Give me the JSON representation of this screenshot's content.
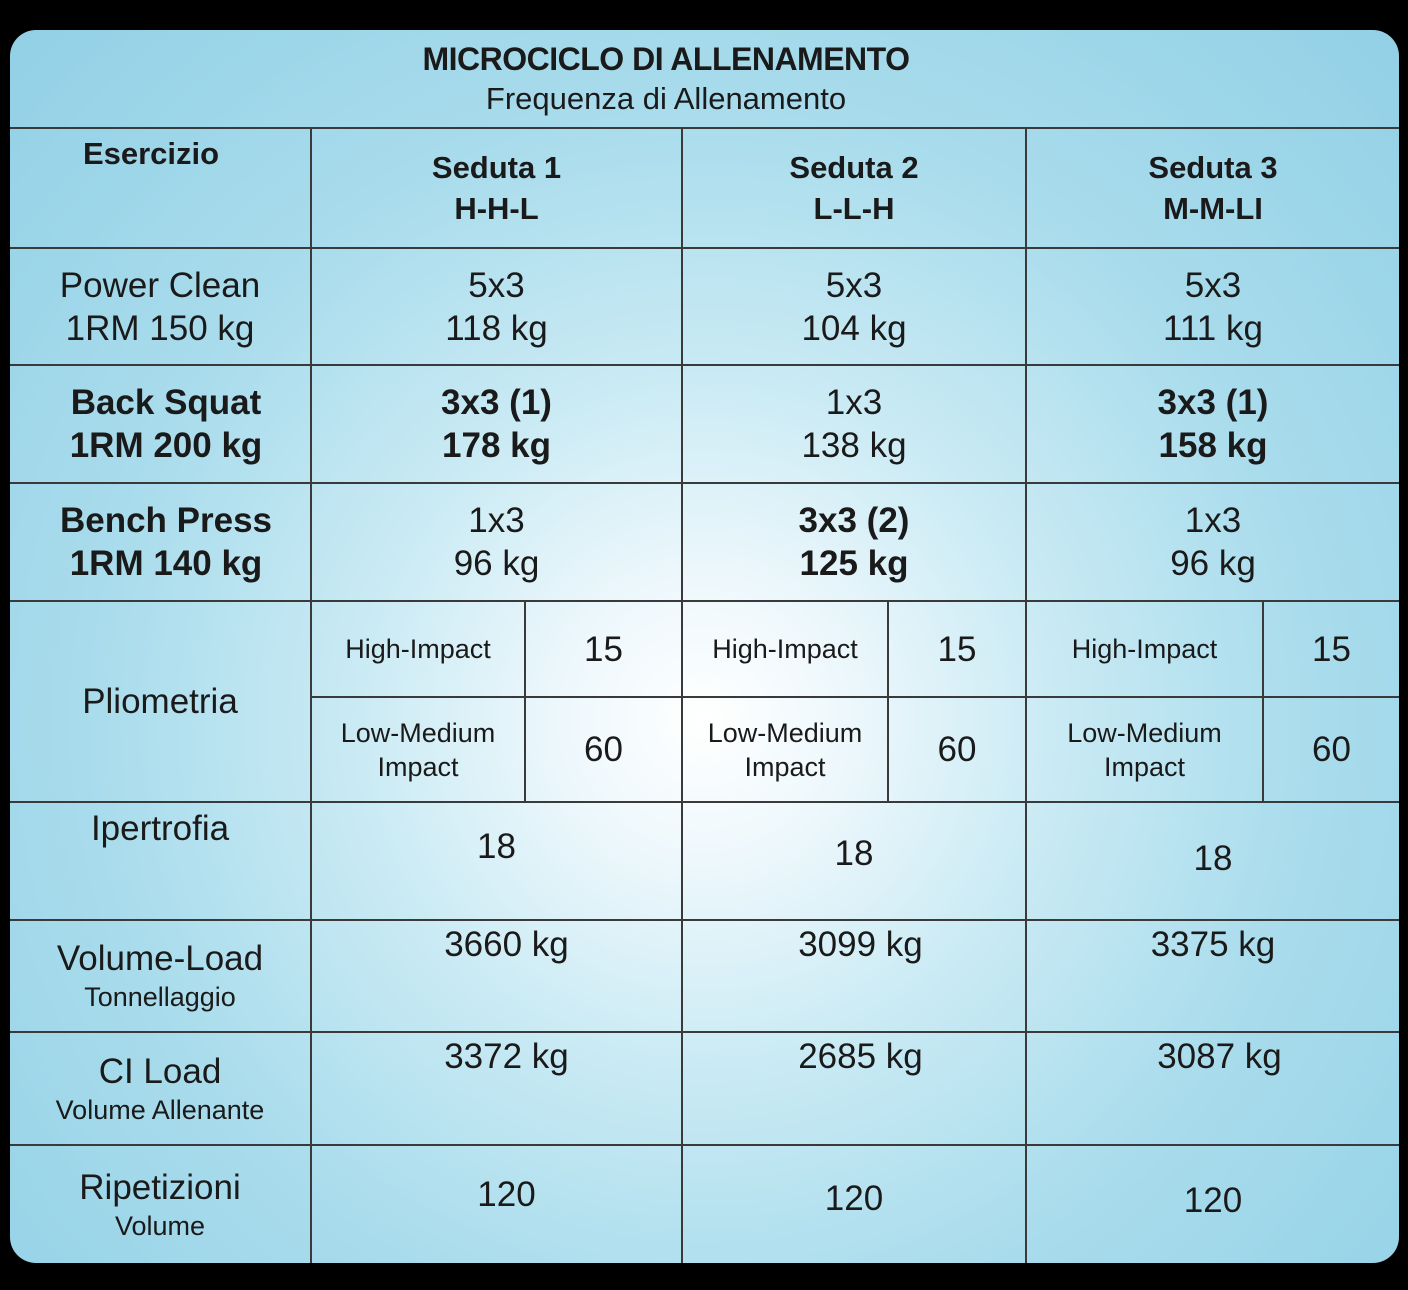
{
  "title": "MICROCICLO DI ALLENAMENTO",
  "subtitle": "Frequenza di Allenamento",
  "columns": {
    "exercise": "Esercizio",
    "sessions": [
      {
        "name": "Seduta 1",
        "code": "H-H-L"
      },
      {
        "name": "Seduta 2",
        "code": "L-L-H"
      },
      {
        "name": "Seduta 3",
        "code": "M-M-LI"
      }
    ]
  },
  "rows": {
    "power_clean": {
      "label": "Power Clean",
      "sub": "1RM 150 kg",
      "sessions": [
        {
          "scheme": "5x3",
          "load": "118 kg"
        },
        {
          "scheme": "5x3",
          "load": "104 kg"
        },
        {
          "scheme": "5x3",
          "load": "111 kg"
        }
      ]
    },
    "back_squat": {
      "label": "Back Squat",
      "sub": "1RM 200 kg",
      "sessions": [
        {
          "scheme": "3x3 (1)",
          "load": "178 kg"
        },
        {
          "scheme": "1x3",
          "load": "138 kg"
        },
        {
          "scheme": "3x3 (1)",
          "load": "158 kg"
        }
      ]
    },
    "bench_press": {
      "label": "Bench Press",
      "sub": "1RM 140 kg",
      "sessions": [
        {
          "scheme": "1x3",
          "load": "96 kg"
        },
        {
          "scheme": "3x3 (2)",
          "load": "125 kg"
        },
        {
          "scheme": "1x3",
          "load": "96 kg"
        }
      ]
    },
    "pliometria": {
      "label": "Pliometria",
      "sessions": [
        {
          "high_label": "High-Impact",
          "high_value": "15",
          "low_label_1": "Low-Medium",
          "low_label_2": "Impact",
          "low_value": "60"
        },
        {
          "high_label": "High-Impact",
          "high_value": "15",
          "low_label_1": "Low-Medium",
          "low_label_2": "Impact",
          "low_value": "60"
        },
        {
          "high_label": "High-Impact",
          "high_value": "15",
          "low_label_1": "Low-Medium",
          "low_label_2": "Impact",
          "low_value": "60"
        }
      ]
    },
    "ipertrofia": {
      "label": "Ipertrofia",
      "values": [
        "18",
        "18",
        "18"
      ]
    },
    "volume_load": {
      "label": "Volume-Load",
      "sub": "Tonnellaggio",
      "values": [
        "3660 kg",
        "3099 kg",
        "3375 kg"
      ]
    },
    "ci_load": {
      "label": "CI Load",
      "sub": "Volume Allenante",
      "values": [
        "3372 kg",
        "2685 kg",
        "3087 kg"
      ]
    },
    "ripetizioni": {
      "label": "Ripetizioni",
      "sub": "Volume",
      "values": [
        "120",
        "120",
        "120"
      ]
    }
  }
}
